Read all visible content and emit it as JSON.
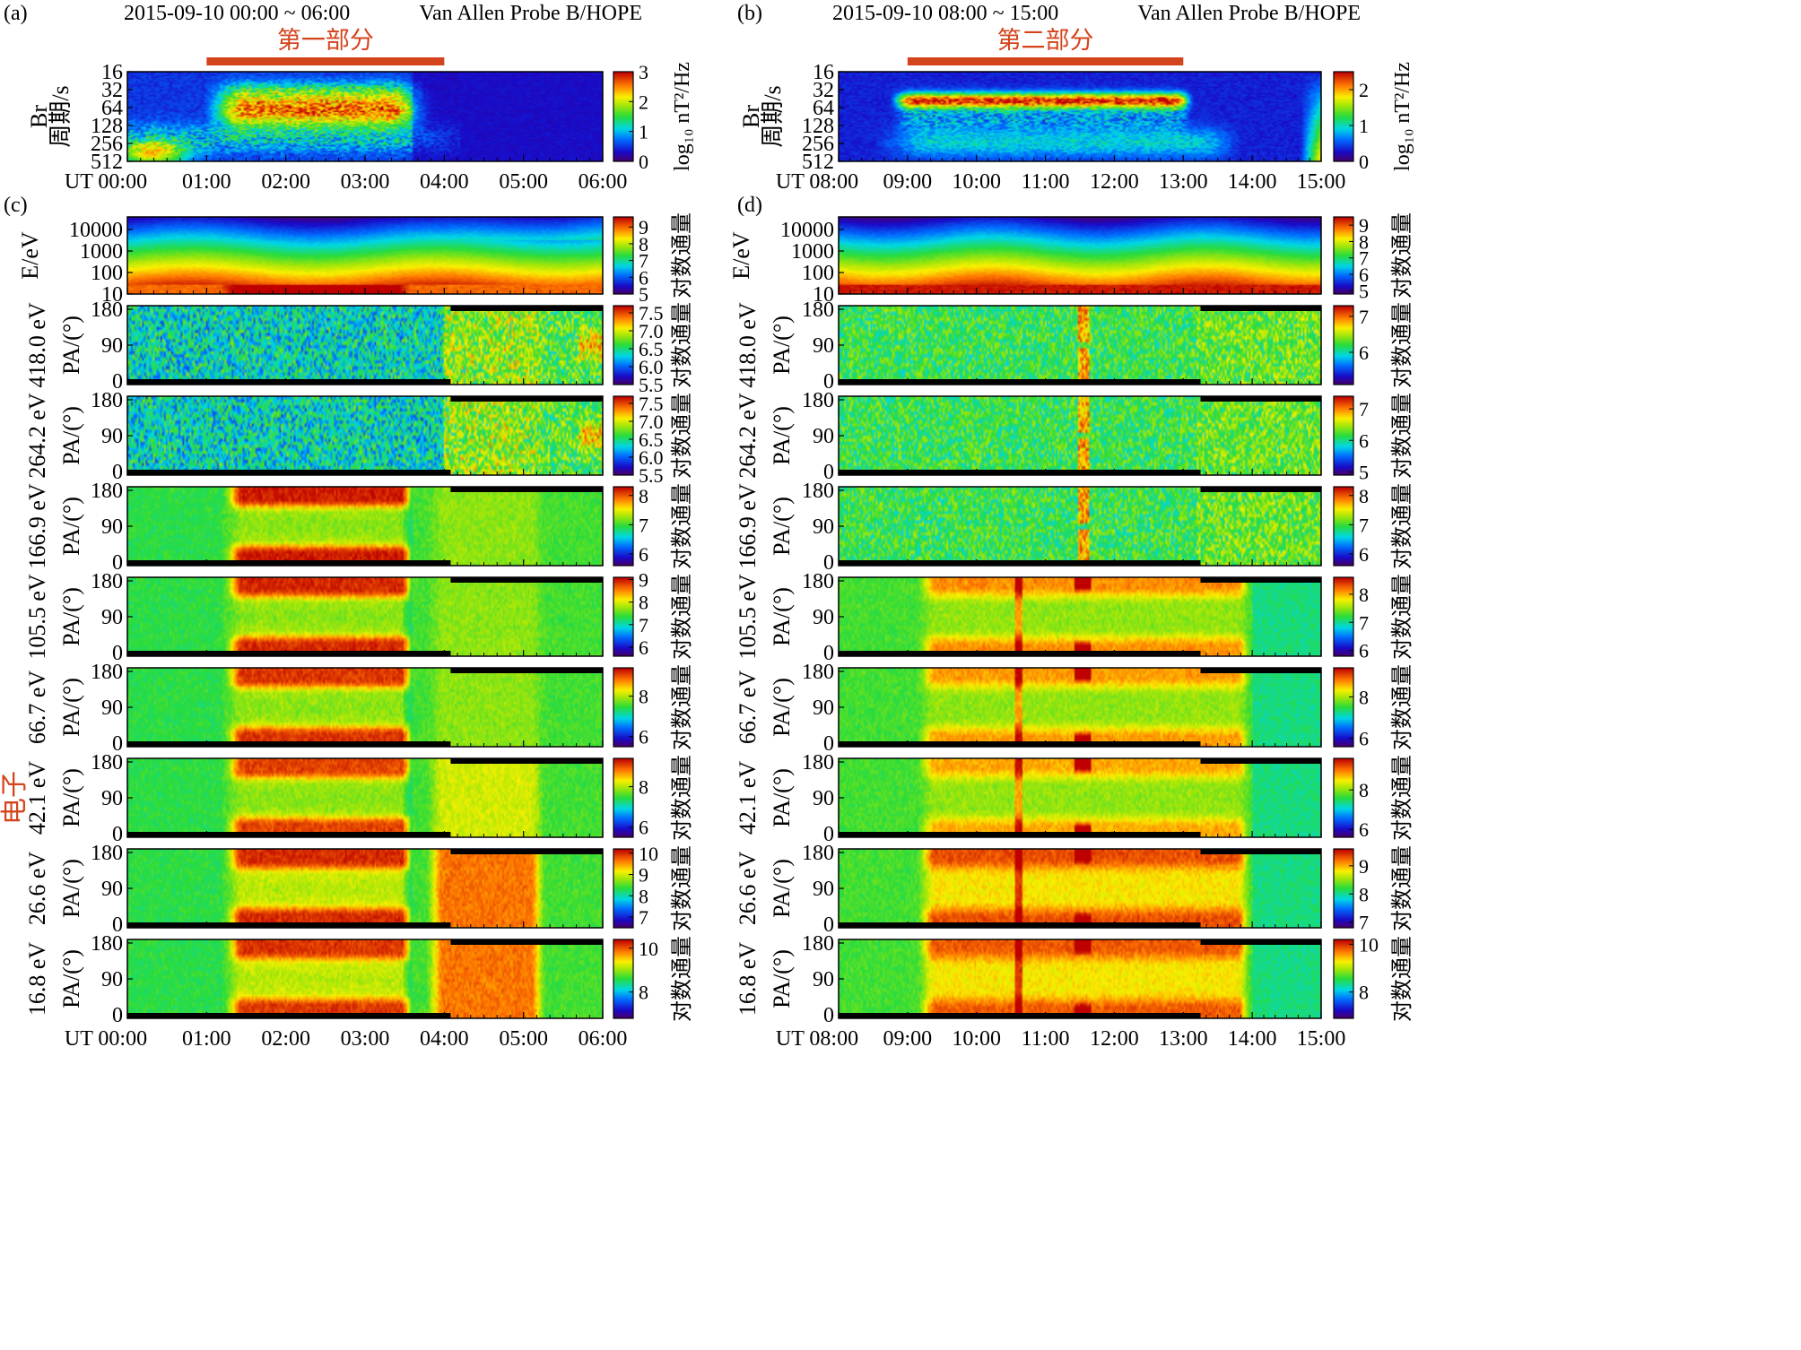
{
  "colors": {
    "accent": "#d4441c",
    "fill_mask": "#000000",
    "colormap": "jet"
  },
  "side_label": "电子",
  "chart_data": [
    {
      "type": "heatmap",
      "panel": "(a)",
      "title": "2015-09-10 00:00 ~ 06:00",
      "instrument": "Van Allen Probe B/HOPE",
      "interval_label": "第一部分",
      "interval": [
        "01:00",
        "04:00"
      ],
      "ylabel": [
        "Br",
        "周期/s"
      ],
      "yticks": [
        "16",
        "32",
        "64",
        "128",
        "256",
        "512"
      ],
      "xticks": [
        "UT 00:00",
        "01:00",
        "02:00",
        "03:00",
        "04:00",
        "05:00",
        "06:00"
      ],
      "colorbar_label": "log₁₀ nT²/Hz",
      "colorbar_ticks": [
        "0",
        "1",
        "2",
        "3"
      ],
      "clim": [
        0,
        3
      ],
      "feature": {
        "period_range_s": [
          32,
          128
        ],
        "time_range": [
          "01:20",
          "03:40"
        ]
      }
    },
    {
      "type": "heatmap",
      "panel": "(b)",
      "title": "2015-09-10 08:00 ~ 15:00",
      "instrument": "Van Allen Probe B/HOPE",
      "interval_label": "第二部分",
      "interval": [
        "09:00",
        "13:00"
      ],
      "ylabel": [
        "Br",
        "周期/s"
      ],
      "yticks": [
        "16",
        "32",
        "64",
        "128",
        "256",
        "512"
      ],
      "xticks": [
        "UT 08:00",
        "09:00",
        "10:00",
        "11:00",
        "12:00",
        "13:00",
        "14:00",
        "15:00"
      ],
      "colorbar_label": "log₁₀ nT²/Hz",
      "colorbar_ticks": [
        "0",
        "1",
        "2"
      ],
      "clim": [
        0,
        2.5
      ],
      "feature": {
        "period_range_s": [
          40,
          80
        ],
        "time_range": [
          "09:10",
          "13:00"
        ]
      }
    },
    {
      "type": "heatmap",
      "panel": "(c)",
      "xticks": [
        "UT 00:00",
        "01:00",
        "02:00",
        "03:00",
        "04:00",
        "05:00",
        "06:00"
      ],
      "panels": [
        {
          "ylabel": "E/eV",
          "yticks": [
            "10000",
            "1000",
            "100",
            "10"
          ],
          "colorbar_label": "对数通量",
          "colorbar_ticks": [
            "5",
            "6",
            "7",
            "8",
            "9"
          ],
          "clim": [
            5,
            9.6
          ]
        },
        {
          "energy": "418.0 eV",
          "ylabel": "PA/(°)",
          "yticks": [
            "180",
            "90",
            "0"
          ],
          "colorbar_label": "对数通量",
          "colorbar_ticks": [
            "5.5",
            "6.0",
            "6.5",
            "7.0",
            "7.5"
          ],
          "clim": [
            5.5,
            7.7
          ]
        },
        {
          "energy": "264.2 eV",
          "ylabel": "PA/(°)",
          "yticks": [
            "180",
            "90",
            "0"
          ],
          "colorbar_label": "对数通量",
          "colorbar_ticks": [
            "5.5",
            "6.0",
            "6.5",
            "7.0",
            "7.5"
          ],
          "clim": [
            5.5,
            7.7
          ]
        },
        {
          "energy": "166.9 eV",
          "ylabel": "PA/(°)",
          "yticks": [
            "180",
            "90",
            "0"
          ],
          "colorbar_label": "对数通量",
          "colorbar_ticks": [
            "6",
            "7",
            "8"
          ],
          "clim": [
            5.6,
            8.3
          ]
        },
        {
          "energy": "105.5 eV",
          "ylabel": "PA/(°)",
          "yticks": [
            "180",
            "90",
            "0"
          ],
          "colorbar_label": "对数通量",
          "colorbar_ticks": [
            "6",
            "7",
            "8",
            "9"
          ],
          "clim": [
            5.6,
            9.1
          ]
        },
        {
          "energy": "66.7 eV",
          "ylabel": "PA/(°)",
          "yticks": [
            "180",
            "90",
            "0"
          ],
          "colorbar_label": "对数通量",
          "colorbar_ticks": [
            "6",
            "8"
          ],
          "clim": [
            5.5,
            9.4
          ]
        },
        {
          "energy": "42.1 eV",
          "ylabel": "PA/(°)",
          "yticks": [
            "180",
            "90",
            "0"
          ],
          "colorbar_label": "对数通量",
          "colorbar_ticks": [
            "6",
            "8"
          ],
          "clim": [
            5.5,
            9.4
          ]
        },
        {
          "energy": "26.6 eV",
          "ylabel": "PA/(°)",
          "yticks": [
            "180",
            "90",
            "0"
          ],
          "colorbar_label": "对数通量",
          "colorbar_ticks": [
            "7",
            "8",
            "9",
            "10"
          ],
          "clim": [
            6.5,
            10.2
          ]
        },
        {
          "energy": "16.8 eV",
          "ylabel": "PA/(°)",
          "yticks": [
            "180",
            "90",
            "0"
          ],
          "colorbar_label": "对数通量",
          "colorbar_ticks": [
            "8",
            "10"
          ],
          "clim": [
            6.8,
            10.4
          ]
        }
      ]
    },
    {
      "type": "heatmap",
      "panel": "(d)",
      "xticks": [
        "UT 08:00",
        "09:00",
        "10:00",
        "11:00",
        "12:00",
        "13:00",
        "14:00",
        "15:00"
      ],
      "panels": [
        {
          "ylabel": "E/eV",
          "yticks": [
            "10000",
            "1000",
            "100",
            "10"
          ],
          "colorbar_label": "对数通量",
          "colorbar_ticks": [
            "5",
            "6",
            "7",
            "8",
            "9"
          ],
          "clim": [
            4.8,
            9.5
          ]
        },
        {
          "energy": "418.0 eV",
          "ylabel": "PA/(°)",
          "yticks": [
            "180",
            "90",
            "0"
          ],
          "colorbar_label": "对数通量",
          "colorbar_ticks": [
            "6",
            "7"
          ],
          "clim": [
            5.1,
            7.3
          ]
        },
        {
          "energy": "264.2 eV",
          "ylabel": "PA/(°)",
          "yticks": [
            "180",
            "90",
            "0"
          ],
          "colorbar_label": "对数通量",
          "colorbar_ticks": [
            "5",
            "6",
            "7"
          ],
          "clim": [
            4.9,
            7.4
          ]
        },
        {
          "energy": "166.9 eV",
          "ylabel": "PA/(°)",
          "yticks": [
            "180",
            "90",
            "0"
          ],
          "colorbar_label": "对数通量",
          "colorbar_ticks": [
            "6",
            "7",
            "8"
          ],
          "clim": [
            5.6,
            8.3
          ]
        },
        {
          "energy": "105.5 eV",
          "ylabel": "PA/(°)",
          "yticks": [
            "180",
            "90",
            "0"
          ],
          "colorbar_label": "对数通量",
          "colorbar_ticks": [
            "6",
            "7",
            "8"
          ],
          "clim": [
            5.8,
            8.6
          ]
        },
        {
          "energy": "66.7 eV",
          "ylabel": "PA/(°)",
          "yticks": [
            "180",
            "90",
            "0"
          ],
          "colorbar_label": "对数通量",
          "colorbar_ticks": [
            "6",
            "8"
          ],
          "clim": [
            5.6,
            9.4
          ]
        },
        {
          "energy": "42.1 eV",
          "ylabel": "PA/(°)",
          "yticks": [
            "180",
            "90",
            "0"
          ],
          "colorbar_label": "对数通量",
          "colorbar_ticks": [
            "6",
            "8"
          ],
          "clim": [
            5.6,
            9.6
          ]
        },
        {
          "energy": "26.6 eV",
          "ylabel": "PA/(°)",
          "yticks": [
            "180",
            "90",
            "0"
          ],
          "colorbar_label": "对数通量",
          "colorbar_ticks": [
            "7",
            "8",
            "9"
          ],
          "clim": [
            6.8,
            9.6
          ]
        },
        {
          "energy": "16.8 eV",
          "ylabel": "PA/(°)",
          "yticks": [
            "180",
            "90",
            "0"
          ],
          "colorbar_label": "对数通量",
          "colorbar_ticks": [
            "8",
            "10"
          ],
          "clim": [
            6.9,
            10.2
          ]
        }
      ]
    }
  ]
}
